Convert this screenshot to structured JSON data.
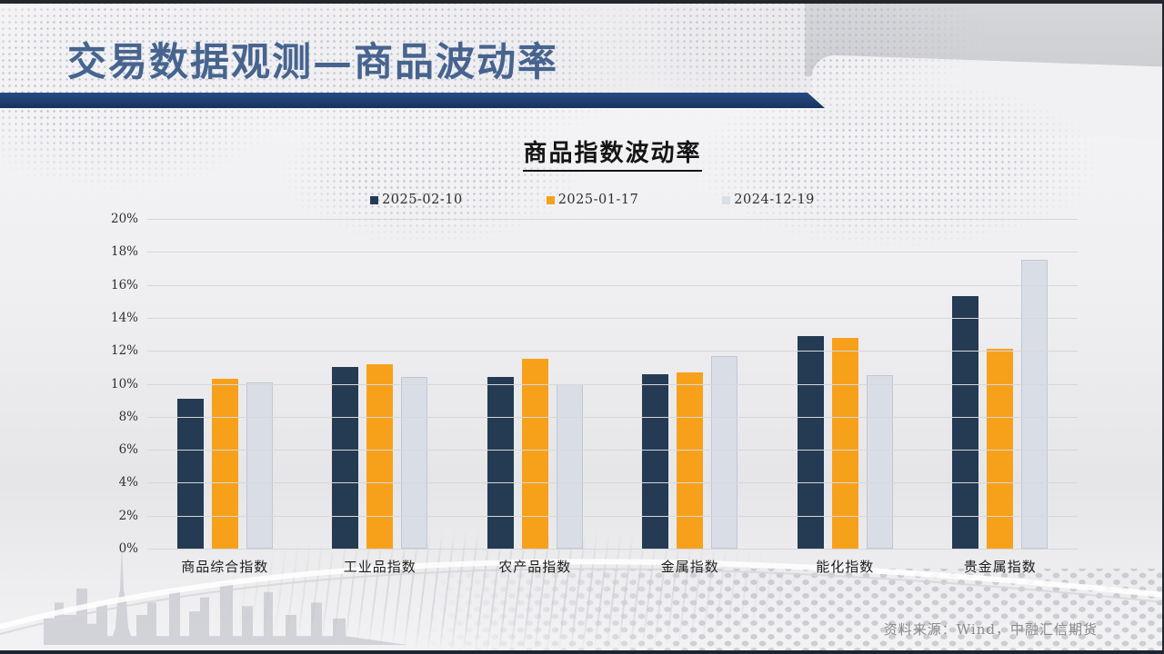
{
  "slide": {
    "title": "交易数据观测—商品波动率",
    "source_note": "资料来源：Wind，中融汇信期货"
  },
  "chart_data": {
    "type": "bar",
    "title": "商品指数波动率",
    "categories": [
      "商品综合指数",
      "工业品指数",
      "农产品指数",
      "金属指数",
      "能化指数",
      "贵金属指数"
    ],
    "series": [
      {
        "name": "2025-02-10",
        "color": "#243B53",
        "values": [
          9.1,
          11.0,
          10.4,
          10.6,
          12.9,
          15.3
        ]
      },
      {
        "name": "2025-01-17",
        "color": "#F7A11B",
        "values": [
          10.3,
          11.2,
          11.5,
          10.7,
          12.8,
          12.1
        ]
      },
      {
        "name": "2024-12-19",
        "color": "#D9DEE6",
        "values": [
          10.1,
          10.4,
          10.0,
          11.7,
          10.5,
          17.5
        ]
      }
    ],
    "ylim": [
      0,
      20
    ],
    "ytick_step": 2,
    "ytick_suffix": "%",
    "grid": true,
    "legend_position": "top-center",
    "xlabel": "",
    "ylabel": ""
  },
  "theme": {
    "header_navy": "#1B3A68",
    "title_color": "#47648F",
    "grid_color": "#D7D7D9",
    "source_color": "#8A8A8A"
  }
}
